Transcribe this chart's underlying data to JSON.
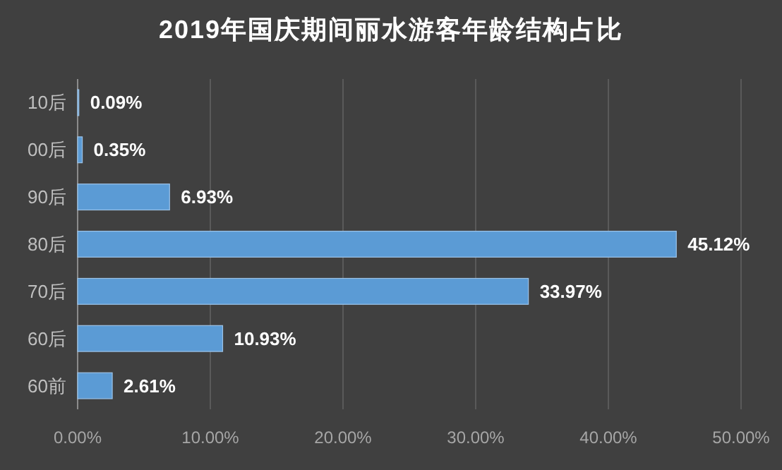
{
  "chart_data": {
    "type": "bar",
    "orientation": "horizontal",
    "title": "2019年国庆期间丽水游客年龄结构占比",
    "categories": [
      "10后",
      "00后",
      "90后",
      "80后",
      "70后",
      "60后",
      "60前"
    ],
    "values": [
      0.09,
      0.35,
      6.93,
      45.12,
      33.97,
      10.93,
      2.61
    ],
    "value_labels": [
      "0.09%",
      "0.35%",
      "6.93%",
      "45.12%",
      "33.97%",
      "10.93%",
      "2.61%"
    ],
    "color": "#5b9bd5",
    "xlim": [
      0,
      50
    ],
    "xticks": [
      {
        "value": 0,
        "label": "0.00%"
      },
      {
        "value": 10,
        "label": "10.00%"
      },
      {
        "value": 20,
        "label": "20.00%"
      },
      {
        "value": 30,
        "label": "30.00%"
      },
      {
        "value": 40,
        "label": "40.00%"
      },
      {
        "value": 50,
        "label": "50.00%"
      }
    ],
    "grid": "x"
  }
}
